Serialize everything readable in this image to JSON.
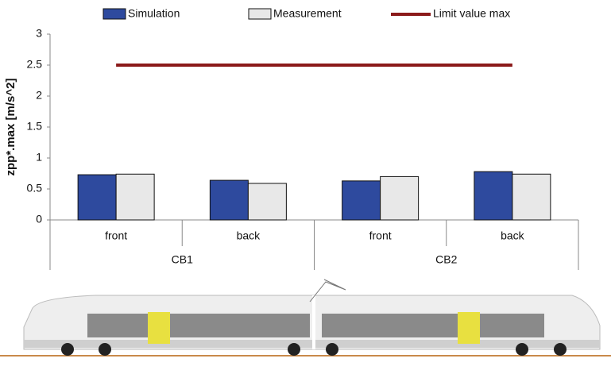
{
  "chart_data": {
    "type": "bar",
    "y_label": "zpp*.max [m/s^2]",
    "groups": [
      {
        "name": "CB1",
        "categories": [
          "front",
          "back"
        ]
      },
      {
        "name": "CB2",
        "categories": [
          "front",
          "back"
        ]
      }
    ],
    "series": [
      {
        "name": "Simulation",
        "type": "bar",
        "color": "#2e4a9e",
        "values": [
          0.73,
          0.64,
          0.63,
          0.78
        ]
      },
      {
        "name": "Measurement",
        "type": "bar",
        "color": "#e8e8e8",
        "values": [
          0.74,
          0.59,
          0.7,
          0.74
        ]
      },
      {
        "name": "Limit value max",
        "type": "line",
        "color": "#8b1a1a",
        "values": [
          2.5,
          2.5,
          2.5,
          2.5
        ]
      }
    ],
    "ylim": [
      0,
      3
    ],
    "yticks": [
      0,
      0.5,
      1,
      1.5,
      2,
      2.5,
      3
    ],
    "grid": false
  }
}
